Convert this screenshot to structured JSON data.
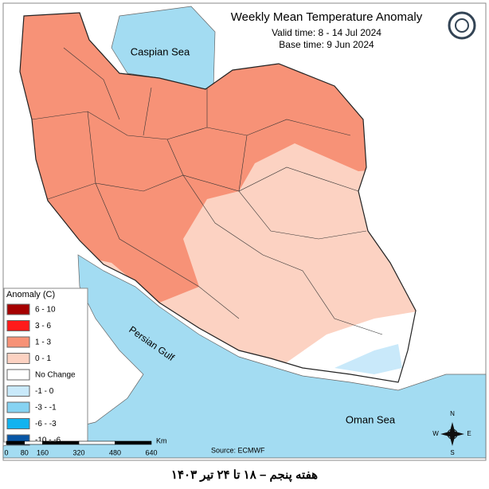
{
  "header": {
    "title": "Weekly Mean Temperature Anomaly",
    "valid_time": "Valid time: 8 - 14 Jul 2024",
    "base_time": "Base time: 9 Jun 2024"
  },
  "legend": {
    "title": "Anomaly (C)",
    "items": [
      {
        "label": "6 - 10",
        "color": "#a50000"
      },
      {
        "label": "3 - 6",
        "color": "#ff1a1a"
      },
      {
        "label": "1 - 3",
        "color": "#f79277"
      },
      {
        "label": "0 - 1",
        "color": "#fcd2c2"
      },
      {
        "label": "No Change",
        "color": "#ffffff"
      },
      {
        "label": "-1 - 0",
        "color": "#c9e9fa"
      },
      {
        "label": "-3 - -1",
        "color": "#86d3f2"
      },
      {
        "label": "-6 - -3",
        "color": "#12b3ef"
      },
      {
        "label": "-10 - -6",
        "color": "#0756a6"
      }
    ]
  },
  "labels": {
    "caspian": "Caspian Sea",
    "gulf": "Persian Gulf",
    "oman": "Oman Sea"
  },
  "scale_bar": {
    "unit": "Km",
    "ticks": [
      0,
      80,
      160,
      320,
      480,
      640
    ]
  },
  "source": "Source: ECMWF",
  "compass": {
    "n": "N",
    "s": "S",
    "e": "E",
    "w": "W"
  },
  "footer": "هفته پنجم – ۱۸ تا ۲۴ تیر ۱۴۰۳"
}
